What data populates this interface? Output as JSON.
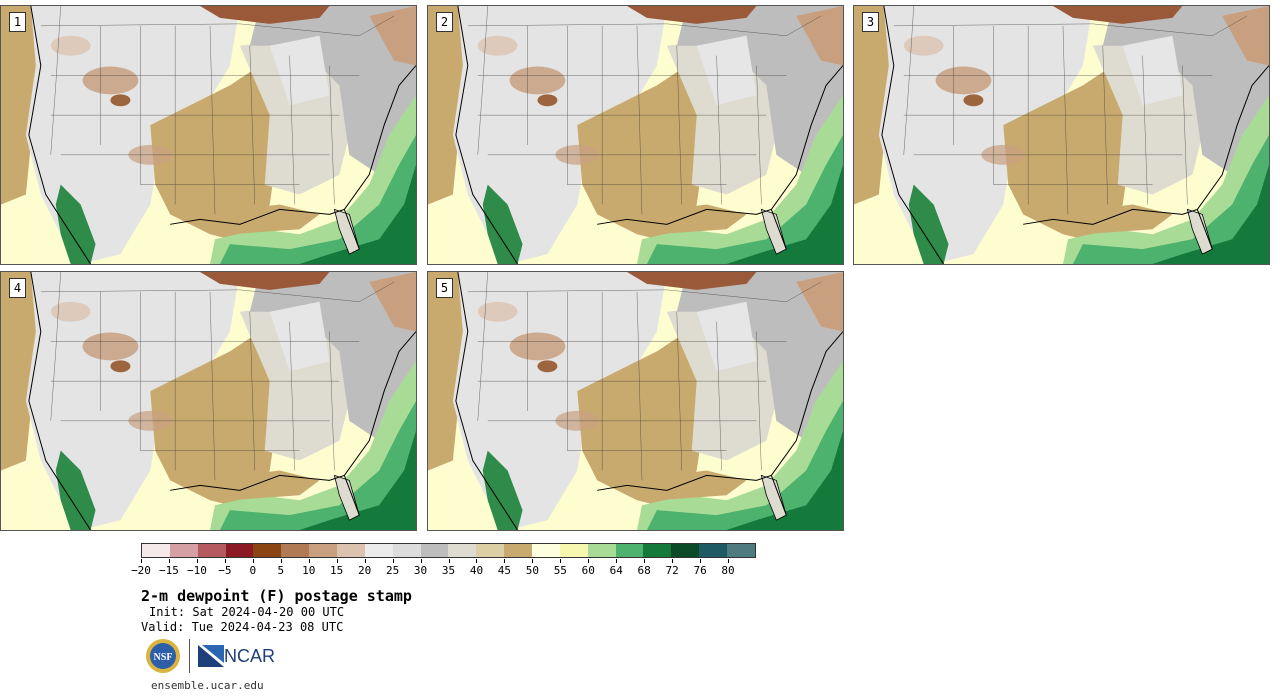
{
  "panels": [
    {
      "label": "1"
    },
    {
      "label": "2"
    },
    {
      "label": "3"
    },
    {
      "label": "4"
    },
    {
      "label": "5"
    }
  ],
  "colorbar": {
    "colors": [
      "#f5e9e9",
      "#d4a0a3",
      "#b55a5f",
      "#8c1a24",
      "#8b4513",
      "#b07a55",
      "#c8a080",
      "#dcc3b0",
      "#ececec",
      "#dcdcdc",
      "#bdbdbd",
      "#dedcd0",
      "#dccfa5",
      "#c9aa6e",
      "#fdfde0",
      "#f7f7b0",
      "#a8dc96",
      "#4db26e",
      "#137a3c",
      "#0a4a26",
      "#1d5a63",
      "#4e7b80"
    ],
    "tick_labels": [
      "-20",
      "-15",
      "-10",
      "-5",
      "0",
      "5",
      "10",
      "15",
      "20",
      "25",
      "30",
      "35",
      "40",
      "45",
      "50",
      "55",
      "60",
      "64",
      "68",
      "72",
      "76",
      "80"
    ]
  },
  "title": "2-m dewpoint (F) postage stamp",
  "init": "Init: Sat 2024-04-20 00 UTC",
  "valid": "Valid: Tue 2024-04-23 08 UTC",
  "logos": {
    "nsf": "NSF",
    "ncar": "NCAR"
  },
  "site": "ensemble.ucar.edu",
  "map_colors": {
    "ocean_pacific": "#fdfdd0",
    "coast_pacific": "#c9aa6e",
    "west": "#dedede",
    "rockies_dry": "#c8a080",
    "plains": "#c9aa6e",
    "midwest": "#dedcd0",
    "northeast": "#bdbdbd",
    "canada_dry": "#9a5a3a",
    "gulf_moist": "#a8dc96",
    "gulf_deep": "#4db26e",
    "atlantic": "#137a3c",
    "mexico_green": "#2e8b4a"
  }
}
